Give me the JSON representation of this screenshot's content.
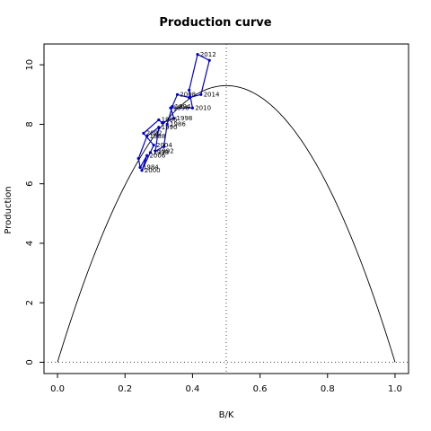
{
  "chart_data": {
    "type": "line",
    "title": "Production curve",
    "xlabel": "B/K",
    "ylabel": "Production",
    "xlim": [
      -0.04,
      1.04
    ],
    "ylim": [
      -0.38,
      10.7
    ],
    "x_ticks": [
      "0.0",
      "0.2",
      "0.4",
      "0.6",
      "0.8",
      "1.0"
    ],
    "y_ticks": [
      "0",
      "2",
      "4",
      "6",
      "8",
      "10"
    ],
    "grid": false,
    "colors": {
      "curve": "#000000",
      "series": "#0000cc",
      "reference": "#444444"
    },
    "curve": {
      "name": "",
      "peak_x": 0.5,
      "peak_y": 9.3
    },
    "reference_lines": {
      "x": 0.5,
      "y": 0
    },
    "series": [
      {
        "name": "",
        "points": [
          {
            "x": 0.245,
            "y": 6.55,
            "label": "1984"
          },
          {
            "x": 0.24,
            "y": 6.85,
            "label": ""
          },
          {
            "x": 0.265,
            "y": 7.6,
            "label": "1988"
          },
          {
            "x": 0.3,
            "y": 7.9,
            "label": "1990"
          },
          {
            "x": 0.29,
            "y": 7.1,
            "label": "1992"
          },
          {
            "x": 0.315,
            "y": 7.25,
            "label": ""
          },
          {
            "x": 0.325,
            "y": 8.0,
            "label": "1986"
          },
          {
            "x": 0.34,
            "y": 8.6,
            "label": "1994"
          },
          {
            "x": 0.355,
            "y": 9.0,
            "label": "2008"
          },
          {
            "x": 0.39,
            "y": 8.9,
            "label": ""
          },
          {
            "x": 0.425,
            "y": 9.0,
            "label": "2014"
          },
          {
            "x": 0.45,
            "y": 10.15,
            "label": ""
          },
          {
            "x": 0.415,
            "y": 10.35,
            "label": "2012"
          },
          {
            "x": 0.39,
            "y": 9.15,
            "label": ""
          },
          {
            "x": 0.4,
            "y": 8.55,
            "label": "2010"
          },
          {
            "x": 0.335,
            "y": 8.55,
            "label": "1996"
          },
          {
            "x": 0.345,
            "y": 8.2,
            "label": "1998"
          },
          {
            "x": 0.31,
            "y": 8.05,
            "label": ""
          },
          {
            "x": 0.3,
            "y": 8.15,
            "label": "1986"
          },
          {
            "x": 0.255,
            "y": 7.7,
            "label": "2002"
          },
          {
            "x": 0.285,
            "y": 7.3,
            "label": "2004"
          },
          {
            "x": 0.275,
            "y": 7.05,
            "label": "1998"
          },
          {
            "x": 0.25,
            "y": 6.45,
            "label": "2000"
          },
          {
            "x": 0.265,
            "y": 6.95,
            "label": "2006"
          },
          {
            "x": 0.245,
            "y": 6.55,
            "label": ""
          }
        ]
      }
    ]
  }
}
